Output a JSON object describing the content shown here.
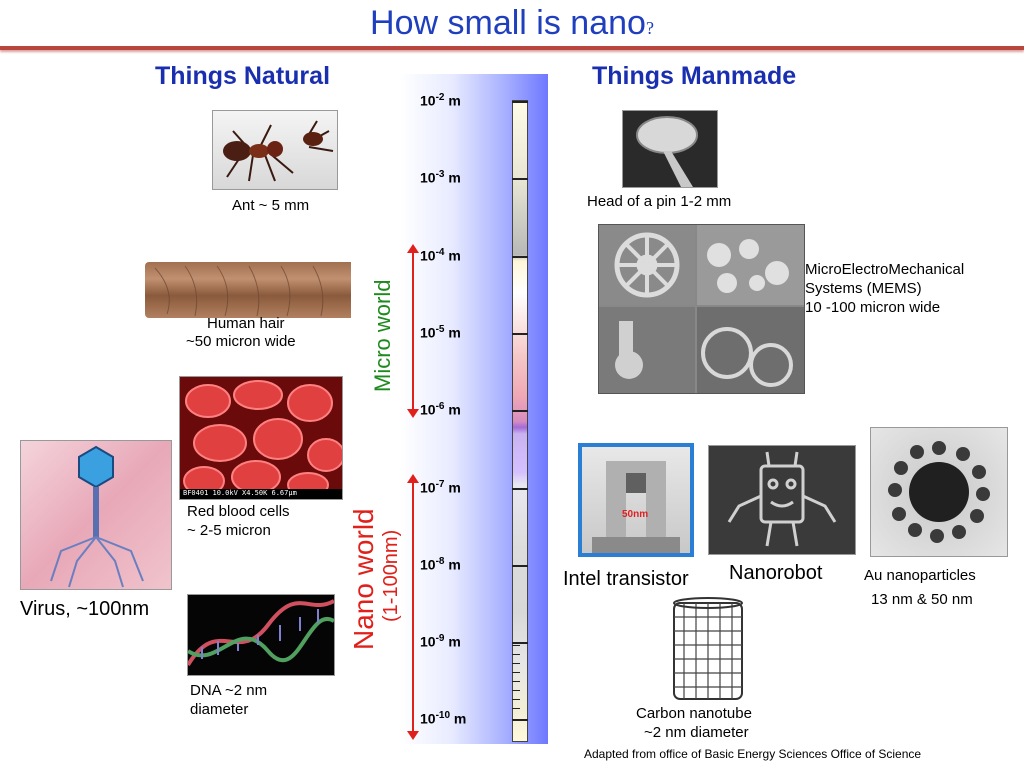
{
  "title": {
    "main": "How small is nano",
    "mark": "?"
  },
  "headings": {
    "natural": "Things Natural",
    "manmade": "Things Manmade"
  },
  "natural": {
    "ant": "Ant ~ 5 mm",
    "hair_1": "Human hair",
    "hair_2": "~50 micron wide",
    "rbc_1": "Red blood cells",
    "rbc_2": "~ 2-5 micron",
    "virus": "Virus, ~100nm",
    "dna_1": "DNA ~2 nm",
    "dna_2": "diameter",
    "rbc_caption": "BF0401 10.0kV X4.50K 6.67µm"
  },
  "manmade": {
    "pin": "Head of a pin 1-2 mm",
    "mems_1": "MicroElectroMechanical",
    "mems_2": "Systems (MEMS)",
    "mems_3": "10 -100 micron wide",
    "transistor": "Intel transistor",
    "transistor_tag": "50nm",
    "nanorobot": "Nanorobot",
    "au_1": "Au nanoparticles",
    "au_2": "13 nm & 50 nm",
    "nanotube_1": "Carbon nanotube",
    "nanotube_2": "~2 nm diameter"
  },
  "scale": {
    "base": "10",
    "unit": "m",
    "exponents": [
      "-2",
      "-3",
      "-4",
      "-5",
      "-6",
      "-7",
      "-8",
      "-9",
      "-10"
    ]
  },
  "worlds": {
    "micro": "Micro world",
    "nano": "Nano world",
    "nano_range": "(1-100nm)"
  },
  "credit": "Adapted from office of Basic Energy Sciences Office of Science",
  "colors": {
    "title": "#1f3fbf",
    "heading": "#1a2fb0",
    "rule": "#b8463f",
    "micro": "#1e8a1e",
    "nano": "#e0201a"
  }
}
